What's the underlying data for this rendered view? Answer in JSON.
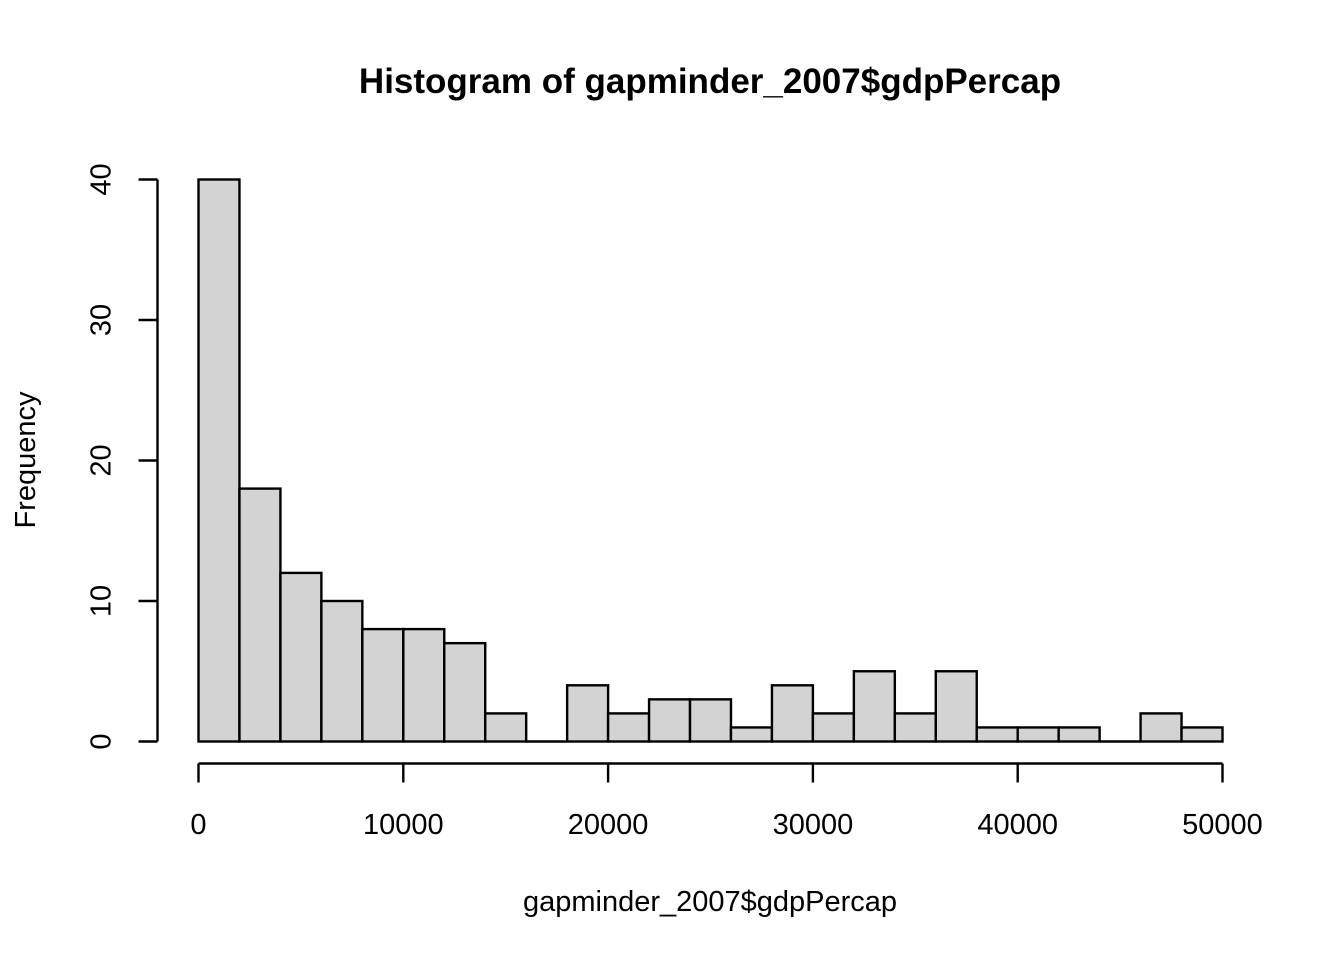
{
  "chart_data": {
    "type": "bar",
    "title": "Histogram of gapminder_2007$gdpPercap",
    "xlabel": "gapminder_2007$gdpPercap",
    "ylabel": "Frequency",
    "bin_width": 2000,
    "bins": [
      {
        "start": 0,
        "end": 2000,
        "count": 40
      },
      {
        "start": 2000,
        "end": 4000,
        "count": 18
      },
      {
        "start": 4000,
        "end": 6000,
        "count": 12
      },
      {
        "start": 6000,
        "end": 8000,
        "count": 10
      },
      {
        "start": 8000,
        "end": 10000,
        "count": 8
      },
      {
        "start": 10000,
        "end": 12000,
        "count": 8
      },
      {
        "start": 12000,
        "end": 14000,
        "count": 7
      },
      {
        "start": 14000,
        "end": 16000,
        "count": 2
      },
      {
        "start": 16000,
        "end": 18000,
        "count": 0
      },
      {
        "start": 18000,
        "end": 20000,
        "count": 4
      },
      {
        "start": 20000,
        "end": 22000,
        "count": 2
      },
      {
        "start": 22000,
        "end": 24000,
        "count": 3
      },
      {
        "start": 24000,
        "end": 26000,
        "count": 3
      },
      {
        "start": 26000,
        "end": 28000,
        "count": 1
      },
      {
        "start": 28000,
        "end": 30000,
        "count": 4
      },
      {
        "start": 30000,
        "end": 32000,
        "count": 2
      },
      {
        "start": 32000,
        "end": 34000,
        "count": 5
      },
      {
        "start": 34000,
        "end": 36000,
        "count": 2
      },
      {
        "start": 36000,
        "end": 38000,
        "count": 5
      },
      {
        "start": 38000,
        "end": 40000,
        "count": 1
      },
      {
        "start": 40000,
        "end": 42000,
        "count": 1
      },
      {
        "start": 42000,
        "end": 44000,
        "count": 1
      },
      {
        "start": 44000,
        "end": 46000,
        "count": 0
      },
      {
        "start": 46000,
        "end": 48000,
        "count": 2
      },
      {
        "start": 48000,
        "end": 50000,
        "count": 1
      }
    ],
    "xlim": [
      0,
      50000
    ],
    "ylim": [
      0,
      40
    ],
    "x_ticks": [
      0,
      10000,
      20000,
      30000,
      40000,
      50000
    ],
    "x_tick_labels": [
      "0",
      "10000",
      "20000",
      "30000",
      "40000",
      "50000"
    ],
    "y_ticks": [
      0,
      10,
      20,
      30,
      40
    ],
    "y_tick_labels": [
      "0",
      "10",
      "20",
      "30",
      "40"
    ],
    "bar_fill": "#d3d3d3",
    "bar_stroke": "#000000",
    "grid": false,
    "legend": "none"
  }
}
